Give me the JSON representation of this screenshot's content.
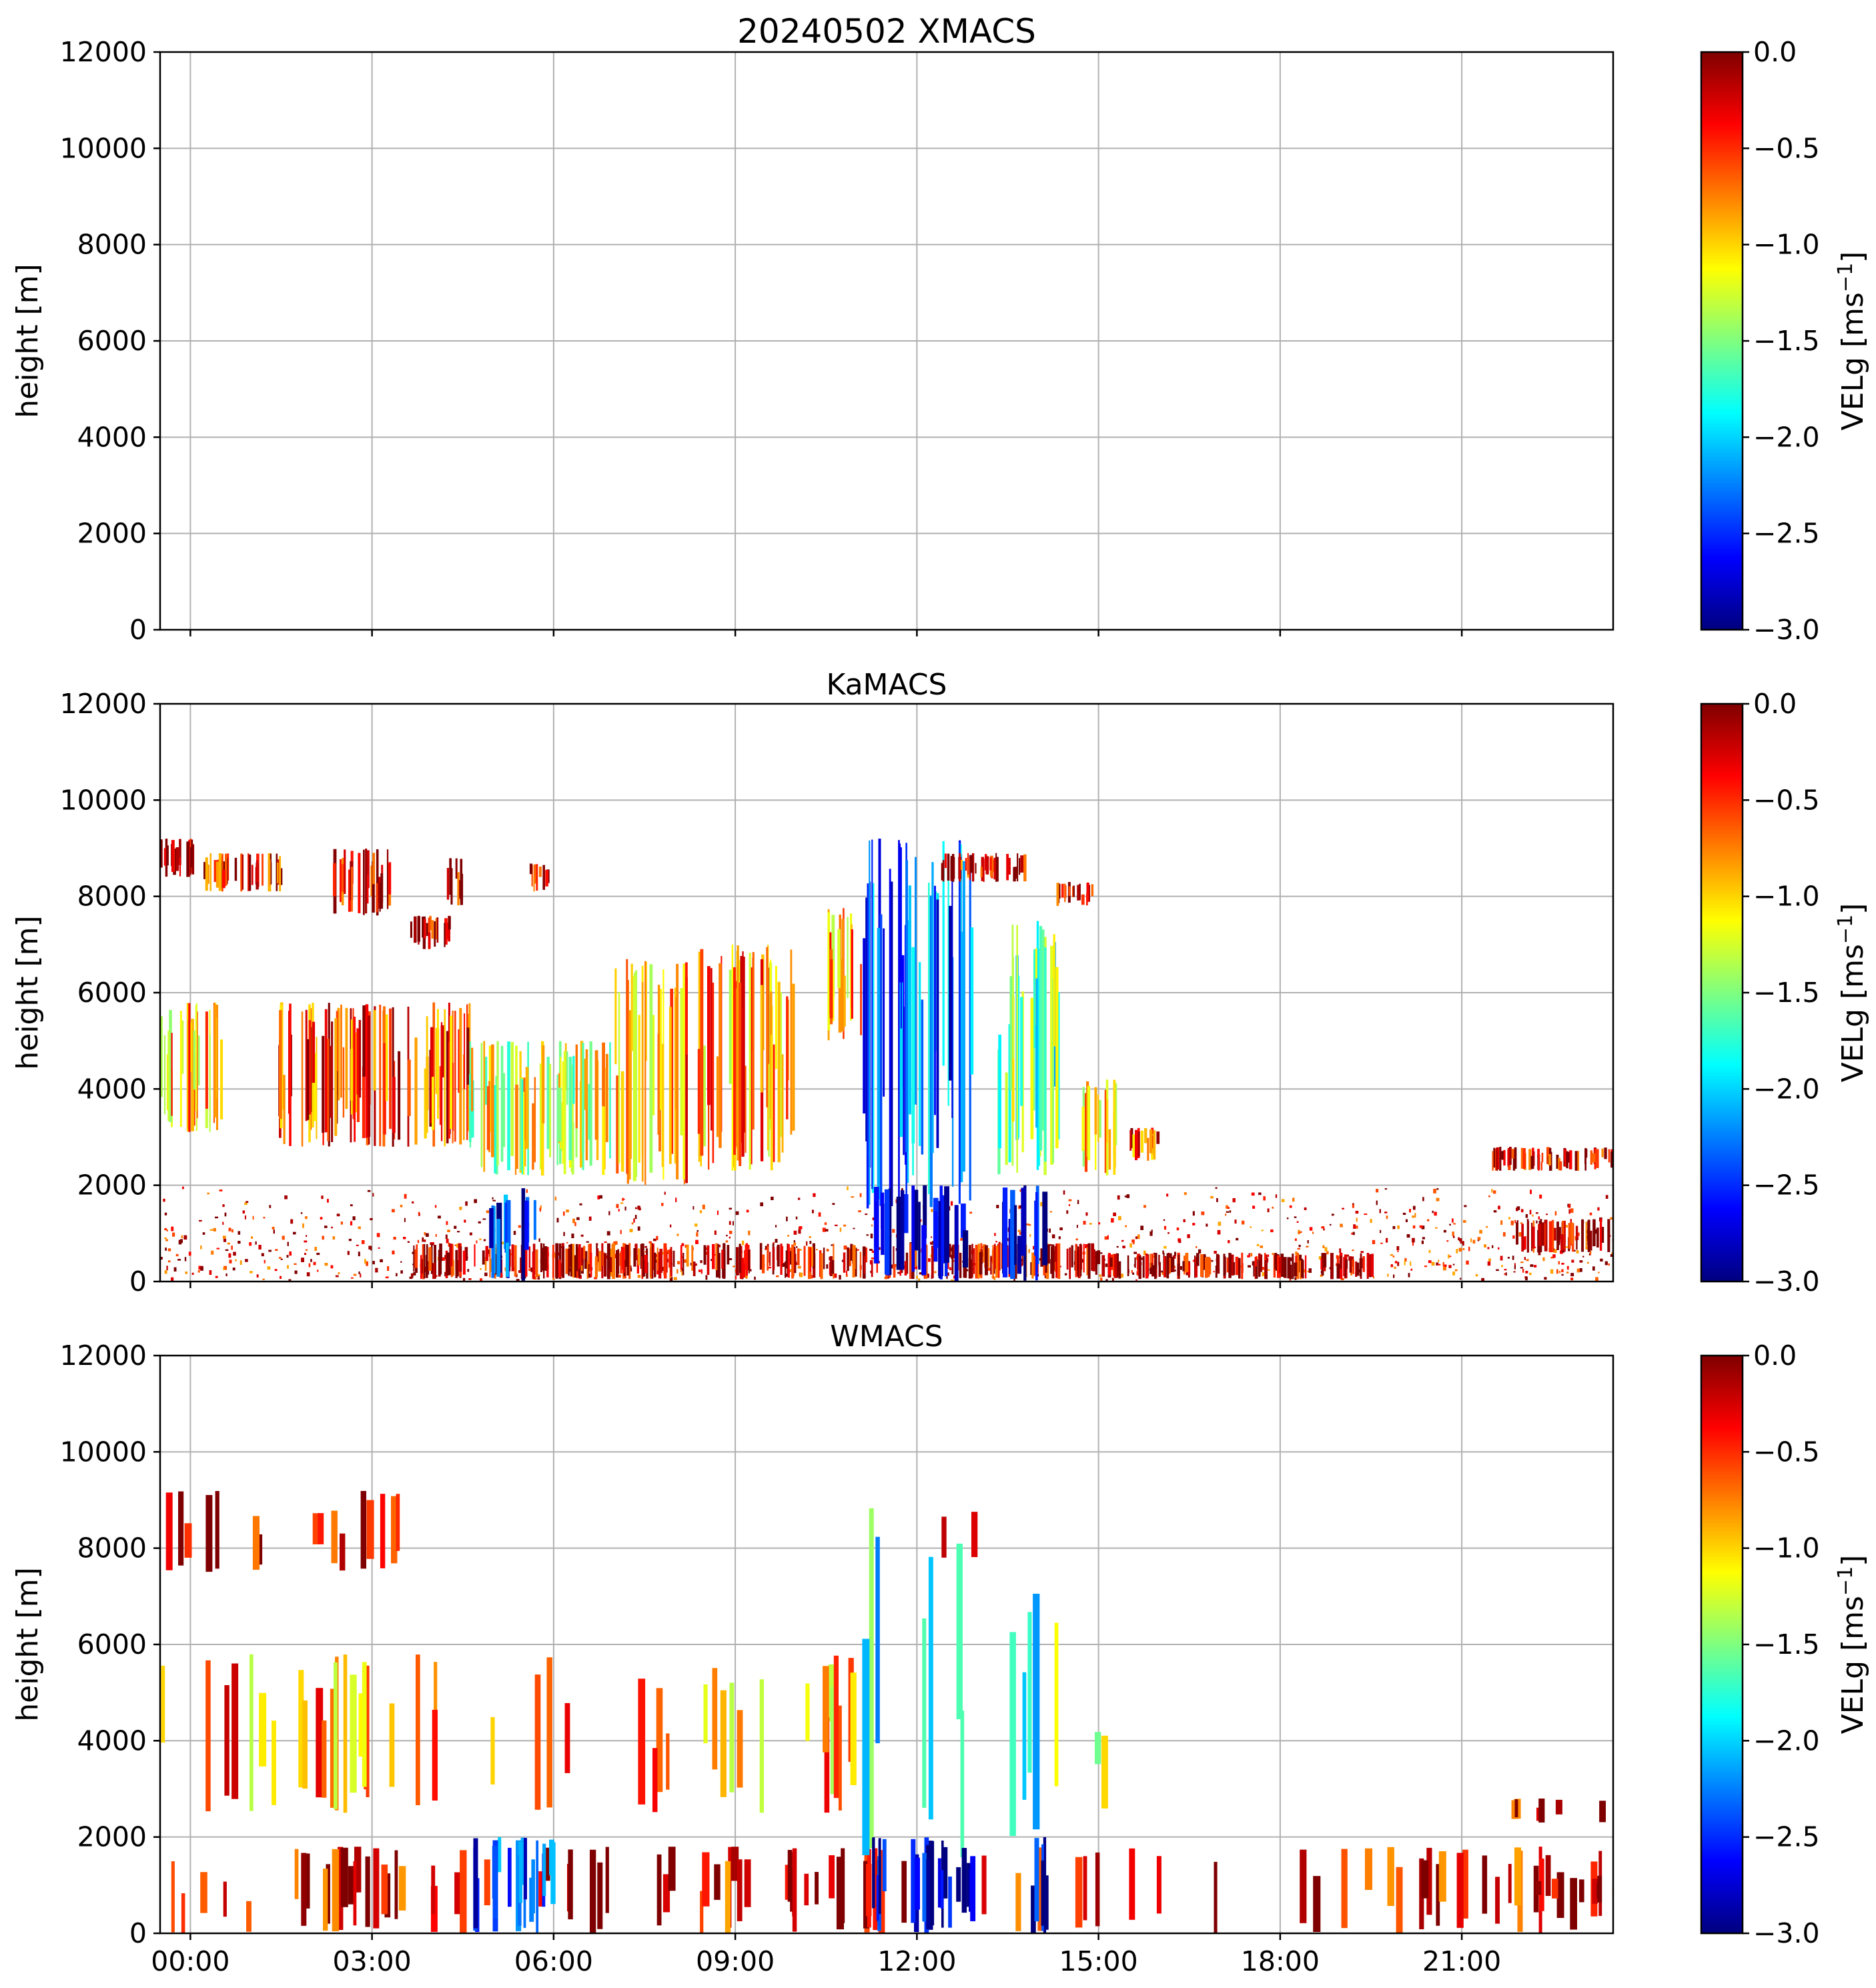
{
  "colormap": {
    "name": "jet",
    "stops": [
      "#00007f",
      "#0000ff",
      "#007fff",
      "#00ffff",
      "#7fff7f",
      "#ffff00",
      "#ff7f00",
      "#ff0000",
      "#7f0000"
    ]
  },
  "chart_data": [
    {
      "type": "heatmap",
      "title": "20240502 XMACS",
      "xlabel": "",
      "ylabel": "height [m]",
      "colorbar_label_main": "VELg [ms",
      "colorbar_label_sup": "−1",
      "colorbar_label_end": "]",
      "ylim": [
        0,
        12000
      ],
      "yticks": [
        0,
        2000,
        4000,
        6000,
        8000,
        10000,
        12000
      ],
      "ytick_labels": [
        "0",
        "2000",
        "4000",
        "6000",
        "8000",
        "10000",
        "12000"
      ],
      "xlim_hours": [
        -0.5,
        23.5
      ],
      "xticks_hours": [
        0,
        3,
        6,
        9,
        12,
        15,
        18,
        21
      ],
      "xtick_labels": [],
      "clim": [
        -3.0,
        0.0
      ],
      "cticks": [
        -3.0,
        -2.5,
        -2.0,
        -1.5,
        -1.0,
        -0.5,
        0.0
      ],
      "ctick_labels": [
        "−3.0",
        "−2.5",
        "−2.0",
        "−1.5",
        "−1.0",
        "−0.5",
        "0.0"
      ],
      "grid": true,
      "echoes": []
    },
    {
      "type": "heatmap",
      "title": "KaMACS",
      "xlabel": "",
      "ylabel": "height [m]",
      "colorbar_label_main": "VELg [ms",
      "colorbar_label_sup": "−1",
      "colorbar_label_end": "]",
      "ylim": [
        0,
        12000
      ],
      "yticks": [
        0,
        2000,
        4000,
        6000,
        8000,
        10000,
        12000
      ],
      "ytick_labels": [
        "0",
        "2000",
        "4000",
        "6000",
        "8000",
        "10000",
        "12000"
      ],
      "xlim_hours": [
        -0.5,
        23.5
      ],
      "xticks_hours": [
        0,
        3,
        6,
        9,
        12,
        15,
        18,
        21
      ],
      "xtick_labels": [],
      "clim": [
        -3.0,
        0.0
      ],
      "cticks": [
        -3.0,
        -2.5,
        -2.0,
        -1.5,
        -1.0,
        -0.5,
        0.0
      ],
      "ctick_labels": [
        "−3.0",
        "−2.5",
        "−2.0",
        "−1.5",
        "−1.0",
        "−0.5",
        "0.0"
      ],
      "grid": true,
      "echoes": [
        {
          "t0": -0.5,
          "t1": 23.5,
          "h0": 0,
          "h1": 2000,
          "v": -0.3,
          "kind": "sparse"
        },
        {
          "t0": 3.6,
          "t1": 15.0,
          "h0": 50,
          "h1": 800,
          "v": -0.2,
          "kind": "dense"
        },
        {
          "t0": 15.0,
          "t1": 19.5,
          "h0": 50,
          "h1": 600,
          "v": -0.1,
          "kind": "dense"
        },
        {
          "t0": 21.8,
          "t1": 23.5,
          "h0": 600,
          "h1": 1300,
          "v": -0.2,
          "kind": "dense"
        },
        {
          "t0": 21.5,
          "t1": 23.5,
          "h0": 2300,
          "h1": 2800,
          "v": -0.2,
          "kind": "dense"
        },
        {
          "t0": -0.5,
          "t1": 0.5,
          "h0": 3100,
          "h1": 5800,
          "v": -0.9,
          "kind": "dense"
        },
        {
          "t0": 1.4,
          "t1": 4.6,
          "h0": 2800,
          "h1": 5800,
          "v": -0.5,
          "kind": "dense"
        },
        {
          "t0": 4.6,
          "t1": 7.0,
          "h0": 2200,
          "h1": 5000,
          "v": -1.2,
          "kind": "dense"
        },
        {
          "t0": 7.0,
          "t1": 8.2,
          "h0": 2000,
          "h1": 6700,
          "v": -0.8,
          "kind": "dense"
        },
        {
          "t0": 8.2,
          "t1": 10.0,
          "h0": 2300,
          "h1": 7000,
          "v": -0.8,
          "kind": "dense"
        },
        {
          "t0": 10.5,
          "t1": 11.1,
          "h0": 5000,
          "h1": 7800,
          "v": -0.8,
          "kind": "dense"
        },
        {
          "t0": 11.1,
          "t1": 12.9,
          "h0": 1500,
          "h1": 9200,
          "v": -2.3,
          "kind": "dense"
        },
        {
          "t0": 12.4,
          "t1": 13.8,
          "h0": 8300,
          "h1": 8900,
          "v": -0.3,
          "kind": "dense"
        },
        {
          "t0": 13.3,
          "t1": 14.4,
          "h0": 2200,
          "h1": 7500,
          "v": -1.6,
          "kind": "dense"
        },
        {
          "t0": 14.3,
          "t1": 14.9,
          "h0": 7800,
          "h1": 8300,
          "v": -0.2,
          "kind": "dense"
        },
        {
          "t0": -0.5,
          "t1": 0.1,
          "h0": 8400,
          "h1": 9200,
          "v": -0.2,
          "kind": "dense"
        },
        {
          "t0": 0.2,
          "t1": 1.5,
          "h0": 8100,
          "h1": 8900,
          "v": -0.3,
          "kind": "dense"
        },
        {
          "t0": 2.3,
          "t1": 3.3,
          "h0": 7600,
          "h1": 9000,
          "v": -0.3,
          "kind": "dense"
        },
        {
          "t0": 3.6,
          "t1": 4.3,
          "h0": 6900,
          "h1": 7600,
          "v": -0.2,
          "kind": "dense"
        },
        {
          "t0": 4.2,
          "t1": 4.5,
          "h0": 7800,
          "h1": 8800,
          "v": -0.2,
          "kind": "dense"
        },
        {
          "t0": 5.6,
          "t1": 5.9,
          "h0": 8100,
          "h1": 8700,
          "v": -0.3,
          "kind": "dense"
        },
        {
          "t0": 4.8,
          "t1": 5.8,
          "h0": 0,
          "h1": 2000,
          "v": -2.6,
          "kind": "streaks"
        },
        {
          "t0": 11.2,
          "t1": 12.9,
          "h0": 0,
          "h1": 2000,
          "v": -2.8,
          "kind": "streaks"
        },
        {
          "t0": 13.4,
          "t1": 14.2,
          "h0": 0,
          "h1": 2000,
          "v": -2.9,
          "kind": "streaks"
        },
        {
          "t0": 14.7,
          "t1": 15.3,
          "h0": 2200,
          "h1": 4200,
          "v": -1.0,
          "kind": "dense"
        },
        {
          "t0": 15.5,
          "t1": 16.0,
          "h0": 2500,
          "h1": 3200,
          "v": -0.5,
          "kind": "dense"
        }
      ]
    },
    {
      "type": "heatmap",
      "title": "WMACS",
      "xlabel": "",
      "ylabel": "height [m]",
      "colorbar_label_main": "VELg [ms",
      "colorbar_label_sup": "−1",
      "colorbar_label_end": "]",
      "ylim": [
        0,
        12000
      ],
      "yticks": [
        0,
        2000,
        4000,
        6000,
        8000,
        10000,
        12000
      ],
      "ytick_labels": [
        "0",
        "2000",
        "4000",
        "6000",
        "8000",
        "10000",
        "12000"
      ],
      "xlim_hours": [
        -0.5,
        23.5
      ],
      "xticks_hours": [
        0,
        3,
        6,
        9,
        12,
        15,
        18,
        21
      ],
      "xtick_labels": [
        "00:00",
        "03:00",
        "06:00",
        "09:00",
        "12:00",
        "15:00",
        "18:00",
        "21:00"
      ],
      "clim": [
        -3.0,
        0.0
      ],
      "cticks": [
        -3.0,
        -2.5,
        -2.0,
        -1.5,
        -1.0,
        -0.5,
        0.0
      ],
      "ctick_labels": [
        "−3.0",
        "−2.5",
        "−2.0",
        "−1.5",
        "−1.0",
        "−0.5",
        "0.0"
      ],
      "grid": true,
      "echoes": [
        {
          "t0": -0.5,
          "t1": 23.5,
          "h0": 0,
          "h1": 1800,
          "v": -0.3,
          "kind": "columns"
        },
        {
          "t0": -0.5,
          "t1": 11.0,
          "h0": 2500,
          "h1": 5800,
          "v": -0.8,
          "kind": "columns"
        },
        {
          "t0": 11.0,
          "t1": 12.8,
          "h0": 1500,
          "h1": 9100,
          "v": -2.0,
          "kind": "columns"
        },
        {
          "t0": 13.3,
          "t1": 14.4,
          "h0": 2000,
          "h1": 7500,
          "v": -1.6,
          "kind": "columns"
        },
        {
          "t0": 12.4,
          "t1": 13.0,
          "h0": 7800,
          "h1": 8800,
          "v": -0.2,
          "kind": "columns"
        },
        {
          "t0": -0.5,
          "t1": 3.5,
          "h0": 7500,
          "h1": 9200,
          "v": -0.2,
          "kind": "columns"
        },
        {
          "t0": 14.7,
          "t1": 15.1,
          "h0": 2400,
          "h1": 4200,
          "v": -1.0,
          "kind": "columns"
        },
        {
          "t0": 4.6,
          "t1": 6.0,
          "h0": 0,
          "h1": 2000,
          "v": -2.5,
          "kind": "streaks"
        },
        {
          "t0": 11.2,
          "t1": 12.9,
          "h0": 0,
          "h1": 2000,
          "v": -2.8,
          "kind": "streaks"
        },
        {
          "t0": 13.8,
          "t1": 14.2,
          "h0": 0,
          "h1": 2000,
          "v": -2.9,
          "kind": "streaks"
        },
        {
          "t0": 21.8,
          "t1": 23.5,
          "h0": 600,
          "h1": 1200,
          "v": -0.2,
          "kind": "columns"
        },
        {
          "t0": 21.8,
          "t1": 23.5,
          "h0": 2300,
          "h1": 2800,
          "v": -0.2,
          "kind": "columns"
        }
      ]
    }
  ]
}
